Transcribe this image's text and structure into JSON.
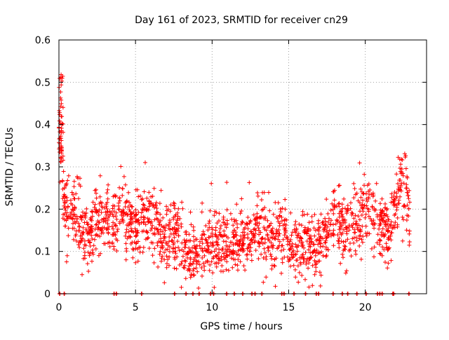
{
  "chart_data": {
    "type": "scatter",
    "title": "Day 161 of 2023, SRMTID for receiver cn29",
    "xlabel": "GPS time / hours",
    "ylabel": "SRMTID / TECUs",
    "xlim": [
      0,
      24
    ],
    "ylim": [
      0,
      0.6
    ],
    "xticks": [
      0,
      5,
      10,
      15,
      20
    ],
    "xtick_labels": [
      "0",
      "5",
      "10",
      "15",
      "20"
    ],
    "yticks": [
      0,
      0.1,
      0.2,
      0.3,
      0.4,
      0.5,
      0.6
    ],
    "ytick_labels": [
      "0",
      "0.1",
      "0.2",
      "0.3",
      "0.4",
      "0.5",
      "0.6"
    ],
    "grid": true,
    "marker": "+",
    "color": "#ff0000",
    "trend": {
      "x": [
        0,
        0.1,
        0.2,
        0.35,
        0.5,
        1.0,
        1.5,
        2.0,
        2.5,
        3.0,
        3.5,
        4.0,
        4.5,
        5.0,
        5.5,
        6.0,
        6.5,
        7.0,
        7.5,
        8.0,
        8.5,
        9.0,
        9.5,
        10.0,
        10.5,
        11.0,
        11.5,
        12.0,
        12.5,
        13.0,
        13.5,
        14.0,
        14.5,
        15.0,
        15.5,
        16.0,
        16.5,
        17.0,
        17.5,
        18.0,
        18.5,
        19.0,
        19.5,
        20.0,
        20.5,
        21.0,
        21.5,
        22.0,
        22.3,
        22.6,
        22.9
      ],
      "y": [
        0.33,
        0.4,
        0.3,
        0.22,
        0.2,
        0.19,
        0.15,
        0.14,
        0.17,
        0.18,
        0.17,
        0.2,
        0.17,
        0.15,
        0.17,
        0.19,
        0.16,
        0.13,
        0.14,
        0.12,
        0.09,
        0.1,
        0.11,
        0.12,
        0.11,
        0.13,
        0.12,
        0.12,
        0.13,
        0.16,
        0.13,
        0.13,
        0.14,
        0.12,
        0.11,
        0.12,
        0.12,
        0.11,
        0.14,
        0.19,
        0.16,
        0.15,
        0.18,
        0.2,
        0.19,
        0.16,
        0.15,
        0.2,
        0.27,
        0.26,
        0.2
      ]
    },
    "spread": 0.045,
    "point_count": 1800,
    "gap_markers": [
      0.05,
      0.35,
      3.6,
      3.75,
      5.4,
      7.55,
      8.3,
      8.75,
      9.15,
      9.9,
      10.1,
      10.95,
      11.45,
      12.0,
      12.6,
      12.8,
      13.25,
      14.55,
      14.7,
      15.35,
      16.1,
      16.8,
      16.95,
      17.9,
      18.5,
      18.85,
      19.45,
      20.05,
      20.8,
      20.95,
      21.1,
      21.8,
      21.85,
      22.85
    ]
  }
}
